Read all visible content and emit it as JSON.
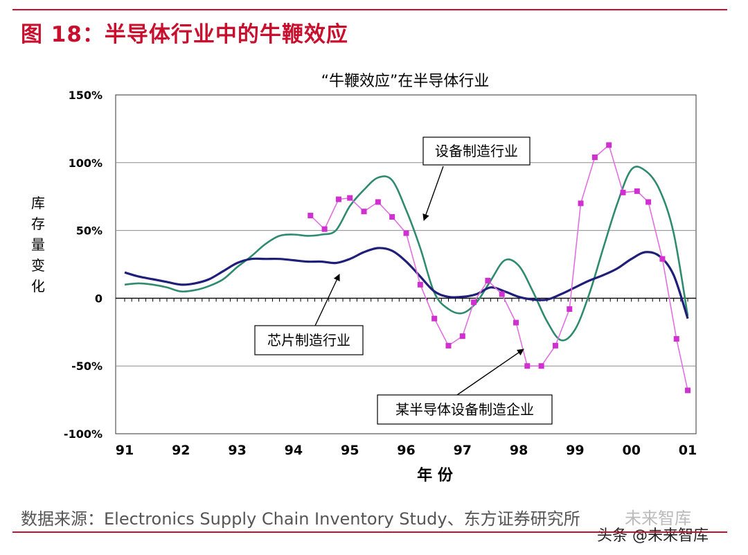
{
  "figure": {
    "title": "图 18：半导体行业中的牛鞭效应",
    "source": "数据来源：Electronics Supply Chain Inventory Study、东方证券研究所",
    "watermark": "头条 @未来智库",
    "watermark_logo": "未来智库",
    "accent_color": "#c8102e"
  },
  "chart_data": {
    "type": "line",
    "title": "“牛鞭效应”在半导体行业",
    "xlabel": "年 份",
    "ylabel": "库存量变化",
    "x_tick_labels": [
      "91",
      "92",
      "93",
      "94",
      "95",
      "96",
      "97",
      "98",
      "99",
      "00",
      "01"
    ],
    "xlim": [
      1991,
      2001
    ],
    "ylim": [
      -100,
      150
    ],
    "y_ticks": [
      -100,
      -50,
      0,
      50,
      100,
      150
    ],
    "y_tick_labels": [
      "-100%",
      "-50%",
      "0",
      "50%",
      "100%",
      "150%"
    ],
    "grid": true,
    "series": [
      {
        "name": "芯片制造行业",
        "color": "#1f1f7a",
        "marker": "none",
        "x": [
          1991.0,
          1991.25,
          1991.5,
          1991.75,
          1992.0,
          1992.25,
          1992.5,
          1992.75,
          1993.0,
          1993.25,
          1993.5,
          1993.75,
          1994.0,
          1994.25,
          1994.5,
          1994.75,
          1995.0,
          1995.25,
          1995.5,
          1995.75,
          1996.0,
          1996.25,
          1996.5,
          1996.75,
          1997.0,
          1997.25,
          1997.5,
          1997.75,
          1998.0,
          1998.25,
          1998.5,
          1998.75,
          1999.0,
          1999.25,
          1999.5,
          1999.75,
          2000.0,
          2000.25,
          2000.5,
          2000.75,
          2001.0
        ],
        "y": [
          19,
          16,
          14,
          12,
          10,
          11,
          14,
          20,
          26,
          29,
          29,
          29,
          28,
          27,
          27,
          26,
          29,
          34,
          37,
          35,
          27,
          16,
          5,
          1,
          1,
          3,
          8,
          5,
          1,
          -1,
          -1,
          3,
          8,
          13,
          17,
          22,
          29,
          34,
          31,
          17,
          -15
        ]
      },
      {
        "name": "设备制造行业",
        "color": "#2e8b6e",
        "marker": "none",
        "x": [
          1991.0,
          1991.25,
          1991.5,
          1991.75,
          1992.0,
          1992.25,
          1992.5,
          1992.75,
          1993.0,
          1993.25,
          1993.5,
          1993.75,
          1994.0,
          1994.25,
          1994.5,
          1994.75,
          1995.0,
          1995.25,
          1995.5,
          1995.75,
          1996.0,
          1996.25,
          1996.5,
          1996.75,
          1997.0,
          1997.25,
          1997.5,
          1997.75,
          1998.0,
          1998.25,
          1998.5,
          1998.75,
          1999.0,
          1999.25,
          1999.5,
          1999.75,
          2000.0,
          2000.25,
          2000.5,
          2000.75,
          2001.0
        ],
        "y": [
          10,
          11,
          10,
          8,
          5,
          6,
          9,
          14,
          23,
          31,
          40,
          46,
          47,
          46,
          47,
          50,
          68,
          80,
          89,
          87,
          65,
          37,
          4,
          -8,
          -11,
          -3,
          13,
          28,
          24,
          5,
          -17,
          -31,
          -23,
          3,
          37,
          70,
          95,
          94,
          80,
          48,
          -13
        ]
      },
      {
        "name": "某半导体设备制造企业",
        "color": "#e070e0",
        "marker_color": "#d030d0",
        "marker": "square",
        "x": [
          1994.3,
          1994.55,
          1994.8,
          1995.0,
          1995.25,
          1995.5,
          1995.75,
          1996.0,
          1996.25,
          1996.5,
          1996.75,
          1997.0,
          1997.2,
          1997.45,
          1997.7,
          1997.95,
          1998.15,
          1998.4,
          1998.65,
          1998.9,
          1999.1,
          1999.35,
          1999.6,
          1999.85,
          2000.1,
          2000.3,
          2000.55,
          2000.8,
          2001.0
        ],
        "y": [
          61,
          51,
          73,
          74,
          64,
          71,
          60,
          48,
          10,
          -15,
          -35,
          -28,
          -3,
          13,
          3,
          -18,
          -50,
          -50,
          -35,
          -8,
          70,
          104,
          113,
          78,
          79,
          71,
          29,
          -30,
          -68
        ]
      }
    ],
    "annotations": [
      {
        "text": "设备制造行业",
        "points_to": "设备制造行业"
      },
      {
        "text": "芯片制造行业",
        "points_to": "芯片制造行业"
      },
      {
        "text": "某半导体设备制造企业",
        "points_to": "某半导体设备制造企业"
      }
    ]
  }
}
